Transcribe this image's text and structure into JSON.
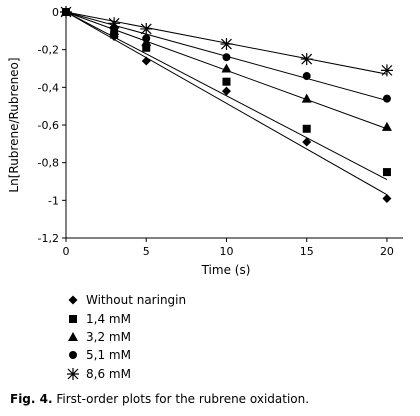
{
  "chart_data": {
    "type": "scatter",
    "title": "",
    "xlabel": "Time (s)",
    "ylabel": "Ln[Rubrene/Rubreneo]",
    "xlim": [
      0,
      21
    ],
    "ylim": [
      -1.2,
      0
    ],
    "xticks": [
      0,
      5,
      10,
      15,
      20
    ],
    "xtick_labels": [
      "0",
      "5",
      "10",
      "15",
      "20"
    ],
    "yticks": [
      0,
      -0.2,
      -0.4,
      -0.6,
      -0.8,
      -1,
      -1.2
    ],
    "ytick_labels": [
      "0",
      "-0,2",
      "-0,4",
      "-0,6",
      "-0,8",
      "-1",
      "-1,2"
    ],
    "grid": false,
    "legend_position": "below",
    "series": [
      {
        "name": "Without naringin",
        "marker": "diamond",
        "x": [
          0,
          3,
          5,
          10,
          15,
          20
        ],
        "y": [
          0,
          -0.13,
          -0.26,
          -0.42,
          -0.69,
          -0.99
        ],
        "fit": [
          [
            0,
            0
          ],
          [
            20,
            -0.97
          ]
        ]
      },
      {
        "name": "1,4 mM",
        "marker": "square",
        "x": [
          0,
          3,
          5,
          10,
          15,
          20
        ],
        "y": [
          0,
          -0.12,
          -0.19,
          -0.37,
          -0.62,
          -0.85
        ],
        "fit": [
          [
            0,
            0
          ],
          [
            20,
            -0.89
          ]
        ]
      },
      {
        "name": "3,2 mM",
        "marker": "triangle",
        "x": [
          0,
          3,
          5,
          10,
          15,
          20
        ],
        "y": [
          0,
          -0.1,
          -0.16,
          -0.3,
          -0.46,
          -0.61
        ],
        "fit": [
          [
            0,
            0
          ],
          [
            20,
            -0.62
          ]
        ]
      },
      {
        "name": "5,1 mM",
        "marker": "circle",
        "x": [
          0,
          3,
          5,
          10,
          15,
          20
        ],
        "y": [
          0,
          -0.09,
          -0.14,
          -0.24,
          -0.34,
          -0.46
        ],
        "fit": [
          [
            0,
            0
          ],
          [
            20,
            -0.47
          ]
        ]
      },
      {
        "name": "8,6 mM",
        "marker": "asterisk",
        "x": [
          0,
          3,
          5,
          10,
          15,
          20
        ],
        "y": [
          0,
          -0.06,
          -0.09,
          -0.17,
          -0.25,
          -0.31
        ],
        "fit": [
          [
            0,
            0
          ],
          [
            20,
            -0.33
          ]
        ]
      }
    ]
  },
  "caption": {
    "label": "Fig. 4.",
    "text": " First-order plots for the rubrene oxidation."
  }
}
